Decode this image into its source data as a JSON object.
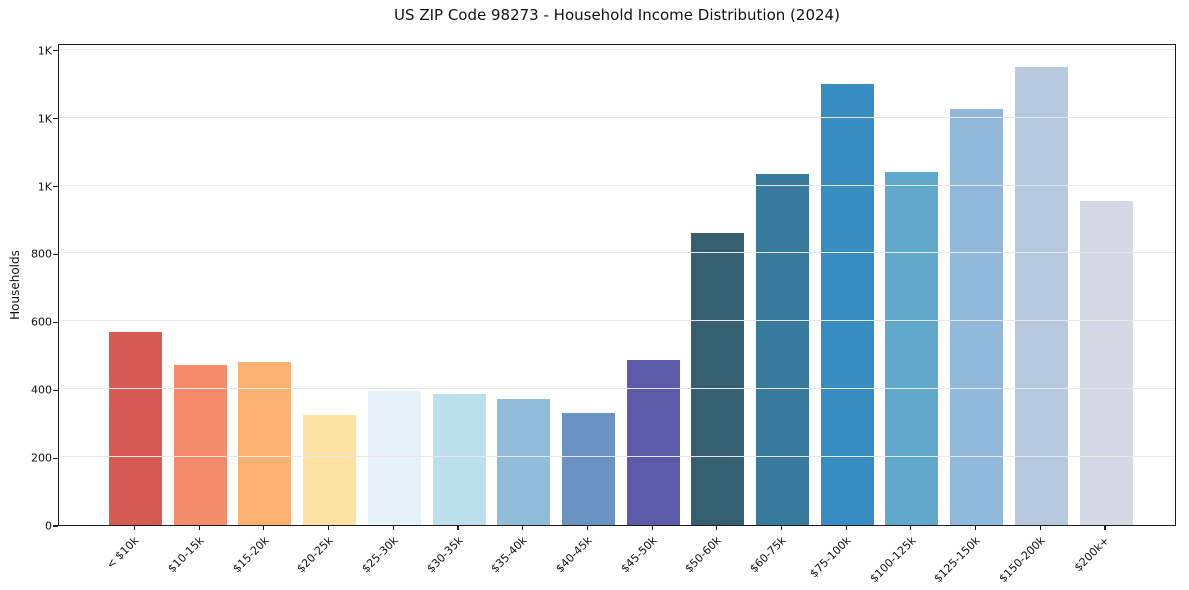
{
  "chart_data": {
    "type": "bar",
    "title": "US ZIP Code 98273 - Household Income Distribution (2024)",
    "xlabel": "",
    "ylabel": "Households",
    "categories": [
      "< $10k",
      "$10-15k",
      "$15-20k",
      "$20-25k",
      "$25-30k",
      "$30-35k",
      "$35-40k",
      "$40-45k",
      "$45-50k",
      "$50-60k",
      "$60-75k",
      "$75-100k",
      "$100-125k",
      "$125-150k",
      "$150-200k",
      "$200k+"
    ],
    "values": [
      570,
      470,
      480,
      325,
      395,
      385,
      370,
      330,
      485,
      860,
      1035,
      1300,
      1040,
      1225,
      1350,
      955
    ],
    "bar_colors": [
      "#d75b52",
      "#f48b6b",
      "#fab172",
      "#fde3a3",
      "#e4f1f6",
      "#bcdfec",
      "#90bcd9",
      "#6a92c2",
      "#5c59a8",
      "#355e70",
      "#377a9e",
      "#388dc0",
      "#60a8cc",
      "#8fb8da",
      "#b7c9de",
      "#d6d8e5"
    ],
    "ylim": [
      0,
      1420
    ],
    "yticks": {
      "values": [
        0,
        200,
        400,
        600,
        800,
        1000,
        1200,
        1400
      ],
      "labels": [
        "0",
        "200",
        "400",
        "600",
        "800",
        "1K",
        "1K",
        "1K"
      ]
    },
    "grid": "horizontal",
    "legend": "none",
    "axis_colors": {
      "spine": "#1c1c1c",
      "gridline": "#e7e7ea",
      "text": "#111111"
    }
  }
}
